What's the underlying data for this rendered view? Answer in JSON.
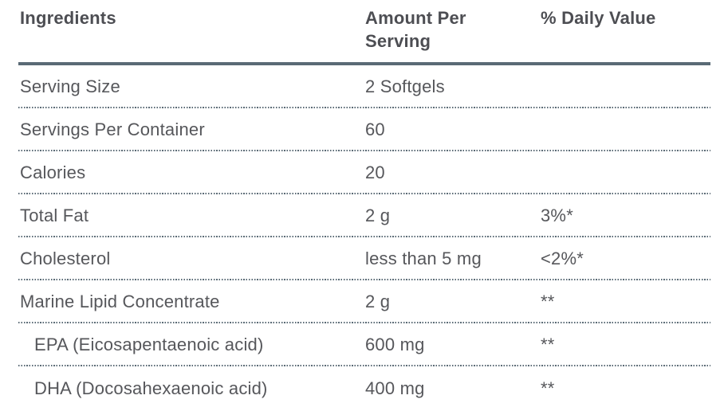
{
  "colors": {
    "header_text": "#4d4e53",
    "body_text": "#56575b",
    "rule": "#5a6a75",
    "background": "#ffffff"
  },
  "table": {
    "columns": [
      {
        "label": "Ingredients"
      },
      {
        "label": "Amount Per Serving"
      },
      {
        "label": "% Daily Value"
      }
    ],
    "rows": [
      {
        "ingredient": "Serving Size",
        "amount": "2 Softgels",
        "daily_value": ""
      },
      {
        "ingredient": "Servings Per Container",
        "amount": "60",
        "daily_value": ""
      },
      {
        "ingredient": "Calories",
        "amount": "20",
        "daily_value": ""
      },
      {
        "ingredient": "Total Fat",
        "amount": "2 g",
        "daily_value": "3%*"
      },
      {
        "ingredient": "Cholesterol",
        "amount": "less than 5 mg",
        "daily_value": "<2%*"
      },
      {
        "ingredient": "Marine Lipid Concentrate",
        "amount": "2 g",
        "daily_value": "**"
      },
      {
        "ingredient": "EPA (Eicosapentaenoic acid)",
        "amount": "600 mg",
        "daily_value": "**"
      },
      {
        "ingredient": "DHA (Docosahexaenoic acid)",
        "amount": "400 mg",
        "daily_value": "**"
      }
    ]
  }
}
